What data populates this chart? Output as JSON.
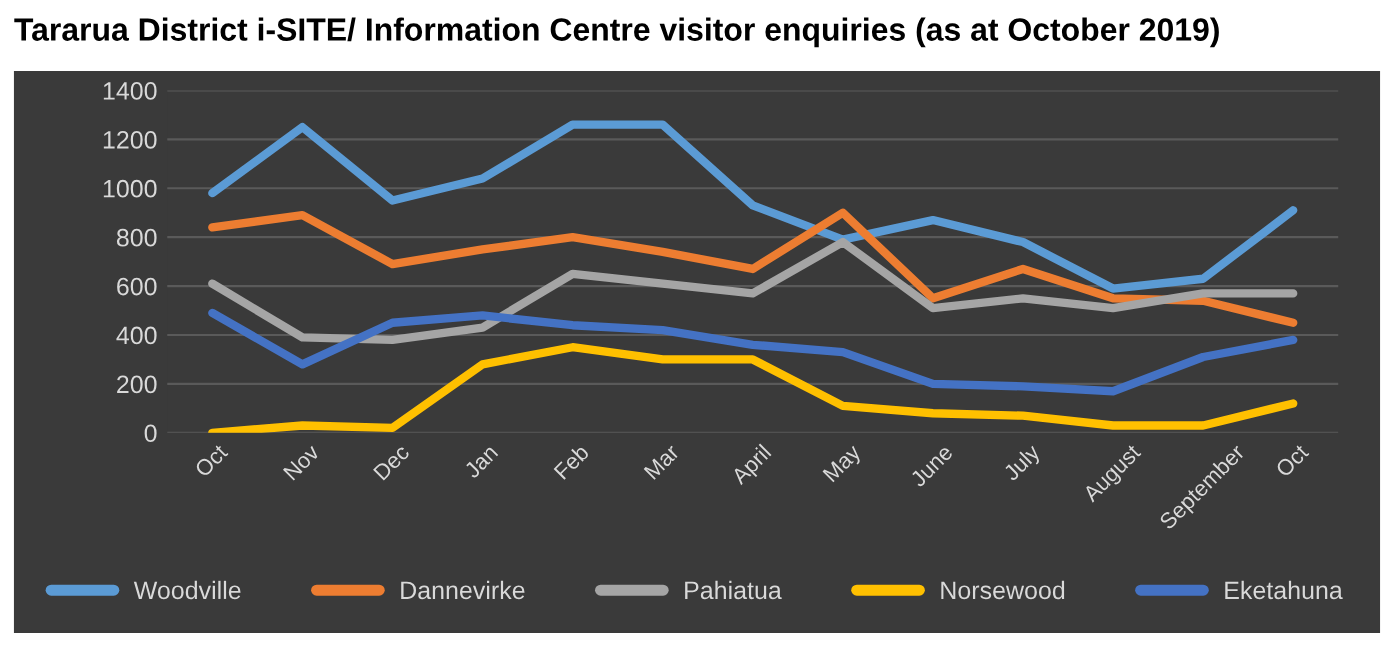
{
  "chart_data": {
    "type": "line",
    "title": "Tararua District i-SITE/ Information Centre visitor enquiries (as at October 2019)",
    "categories": [
      "Oct",
      "Nov",
      "Dec",
      "Jan",
      "Feb",
      "Mar",
      "April",
      "May",
      "June",
      "July",
      "August",
      "September",
      "Oct"
    ],
    "series": [
      {
        "name": "Woodville",
        "color": "#5b9bd5",
        "values": [
          980,
          1250,
          950,
          1040,
          1260,
          1260,
          930,
          790,
          870,
          780,
          590,
          630,
          910
        ]
      },
      {
        "name": "Dannevirke",
        "color": "#ed7d31",
        "values": [
          840,
          890,
          690,
          750,
          800,
          740,
          670,
          900,
          550,
          670,
          550,
          540,
          450
        ]
      },
      {
        "name": "Pahiatua",
        "color": "#a5a5a5",
        "values": [
          610,
          390,
          380,
          430,
          650,
          610,
          570,
          780,
          510,
          550,
          510,
          570,
          570
        ]
      },
      {
        "name": "Norsewood",
        "color": "#ffc000",
        "values": [
          0,
          30,
          20,
          280,
          350,
          300,
          300,
          110,
          80,
          70,
          30,
          30,
          120
        ]
      },
      {
        "name": "Eketahuna",
        "color": "#4472c4",
        "values": [
          490,
          280,
          450,
          480,
          440,
          420,
          360,
          330,
          200,
          190,
          170,
          310,
          380
        ]
      }
    ],
    "ylim": [
      0,
      1400
    ],
    "yticks": [
      0,
      200,
      400,
      600,
      800,
      1000,
      1200,
      1400
    ],
    "grid": "y",
    "legend": "bottom",
    "marker": "none",
    "line_style": "solid"
  }
}
